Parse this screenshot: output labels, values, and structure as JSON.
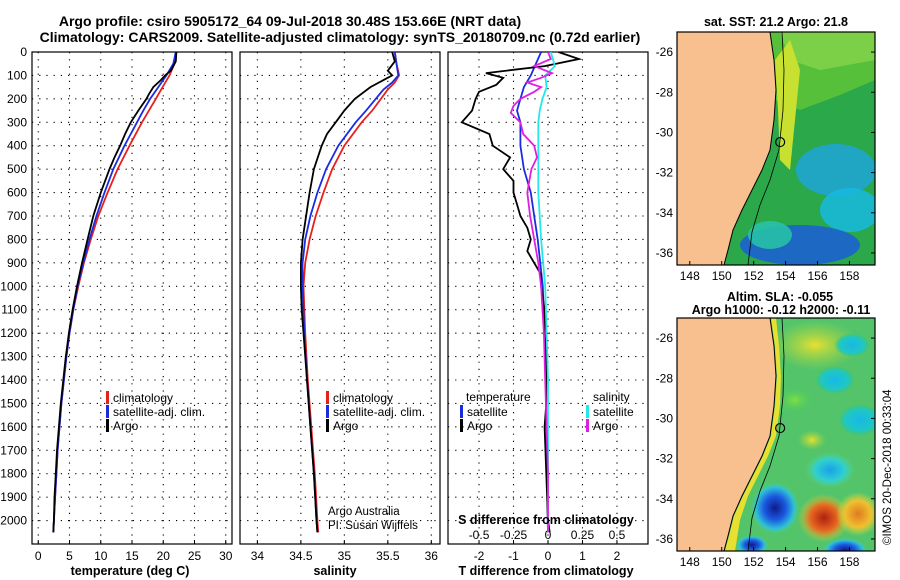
{
  "figure": {
    "title_line1": "Argo profile: csiro 5905172_64 09-Jul-2018 30.48S 153.66E (NRT data)",
    "title_line2": "Climatology: CARS2009. Satellite-adjusted climatology: synTS_20180709.nc (0.72d earlier)",
    "credit_line1": "Argo Australia",
    "credit_line2": "PI: Susan Wijffels",
    "footer_vertical": "©IMOS 20-Dec-2018 00:33:04"
  },
  "colors": {
    "climatology": "#e8201c",
    "satellite": "#1a2ce0",
    "argo": "#000000",
    "sal_satellite": "#22e8e8",
    "sal_argo": "#e020e0"
  },
  "chart_data": [
    {
      "type": "line",
      "id": "temperature",
      "xlabel": "temperature (deg C)",
      "ylabel": "depth",
      "xlim": [
        -1,
        31
      ],
      "ylim": [
        2100,
        0
      ],
      "xticks": [
        "0",
        "5",
        "10",
        "15",
        "20",
        "25",
        "30"
      ],
      "yticks": [
        "0",
        "100",
        "200",
        "300",
        "400",
        "500",
        "600",
        "700",
        "800",
        "900",
        "1000",
        "1100",
        "1200",
        "1300",
        "1400",
        "1500",
        "1600",
        "1700",
        "1800",
        "1900",
        "2000"
      ],
      "legend": [
        "climatology",
        "satellite-adj. clim.",
        "Argo"
      ],
      "series": [
        {
          "name": "climatology",
          "depth": [
            0,
            50,
            100,
            150,
            200,
            250,
            300,
            400,
            500,
            600,
            700,
            800,
            900,
            1000,
            1100,
            1200,
            1300,
            1400,
            1500,
            1600,
            1700,
            1800,
            1900,
            2000,
            2050
          ],
          "values": [
            22.0,
            21.8,
            21.0,
            19.9,
            18.8,
            17.7,
            16.6,
            14.6,
            12.7,
            11.1,
            9.6,
            8.4,
            7.3,
            6.4,
            5.6,
            5.0,
            4.5,
            4.1,
            3.7,
            3.4,
            3.1,
            2.9,
            2.7,
            2.5,
            2.4
          ]
        },
        {
          "name": "satellite-adj. clim.",
          "depth": [
            0,
            50,
            100,
            150,
            200,
            250,
            300,
            400,
            500,
            600,
            700,
            800,
            900,
            1000,
            1100,
            1200,
            1300,
            1400,
            1500,
            1600,
            1700,
            1800,
            1900,
            2000,
            2050
          ],
          "values": [
            22.0,
            21.6,
            20.5,
            19.2,
            17.9,
            16.8,
            15.8,
            13.8,
            12.0,
            10.6,
            9.3,
            8.2,
            7.2,
            6.3,
            5.6,
            5.0,
            4.5,
            4.1,
            3.7,
            3.4,
            3.1,
            2.9,
            2.7,
            2.5,
            2.4
          ]
        },
        {
          "name": "Argo",
          "depth": [
            0,
            40,
            80,
            100,
            120,
            150,
            180,
            200,
            250,
            300,
            350,
            400,
            450,
            500,
            600,
            700,
            800,
            900,
            1000,
            1100,
            1200,
            1300,
            1400,
            1500,
            1600,
            1700,
            1800,
            1900,
            2000,
            2050
          ],
          "values": [
            22.1,
            22.0,
            21.2,
            20.3,
            19.6,
            18.4,
            17.7,
            17.3,
            16.0,
            14.8,
            13.9,
            13.1,
            12.2,
            11.4,
            10.0,
            8.8,
            7.9,
            7.0,
            6.2,
            5.5,
            4.9,
            4.4,
            4.0,
            3.6,
            3.3,
            3.0,
            2.8,
            2.6,
            2.5,
            2.4
          ]
        }
      ]
    },
    {
      "type": "line",
      "id": "salinity",
      "xlabel": "salinity",
      "xlim": [
        33.8,
        36.1
      ],
      "ylim": [
        2100,
        0
      ],
      "xticks": [
        "34",
        "34.5",
        "35",
        "35.5",
        "36"
      ],
      "legend": [
        "climatology",
        "satellite-adj. clim.",
        "Argo"
      ],
      "series": [
        {
          "name": "climatology",
          "depth": [
            0,
            50,
            100,
            130,
            160,
            200,
            250,
            300,
            400,
            500,
            600,
            700,
            800,
            900,
            1000,
            1200,
            1400,
            1600,
            1800,
            2000,
            2050
          ],
          "values": [
            35.58,
            35.6,
            35.63,
            35.58,
            35.5,
            35.42,
            35.32,
            35.2,
            35.0,
            34.86,
            34.76,
            34.67,
            34.6,
            34.55,
            34.53,
            34.55,
            34.58,
            34.62,
            34.66,
            34.69,
            34.7
          ]
        },
        {
          "name": "satellite-adj. clim.",
          "depth": [
            0,
            50,
            100,
            130,
            160,
            200,
            250,
            300,
            400,
            500,
            600,
            700,
            800,
            900,
            1000,
            1200,
            1400,
            1600,
            1800,
            2000,
            2050
          ],
          "values": [
            35.58,
            35.6,
            35.62,
            35.55,
            35.45,
            35.36,
            35.25,
            35.13,
            34.93,
            34.79,
            34.69,
            34.61,
            34.55,
            34.52,
            34.52,
            34.54,
            34.57,
            34.61,
            34.65,
            34.68,
            34.69
          ]
        },
        {
          "name": "Argo",
          "depth": [
            0,
            40,
            80,
            100,
            120,
            150,
            200,
            250,
            300,
            350,
            400,
            500,
            600,
            700,
            800,
            900,
            1000,
            1100,
            1200,
            1400,
            1600,
            1800,
            2000,
            2050
          ],
          "values": [
            35.55,
            35.58,
            35.5,
            35.55,
            35.45,
            35.3,
            35.12,
            35.0,
            34.9,
            34.8,
            34.74,
            34.65,
            34.6,
            34.56,
            34.52,
            34.5,
            34.5,
            34.51,
            34.53,
            34.57,
            34.61,
            34.65,
            34.68,
            34.69
          ]
        }
      ]
    },
    {
      "type": "line",
      "id": "difference",
      "xlabel": "T difference from climatology",
      "xlabel_top": "S difference from climatology",
      "xlim": [
        -2.9,
        2.9
      ],
      "ylim": [
        2100,
        0
      ],
      "xticks": [
        "-2",
        "-1",
        "0",
        "1",
        "2"
      ],
      "xticks_s": [
        "-0.5",
        "-0.25",
        "0",
        "0.25",
        "0.5"
      ],
      "legend_t_title": "temperature",
      "legend_s_title": "salinity",
      "legend": [
        "satellite",
        "Argo",
        "satellite",
        "Argo"
      ],
      "series": [
        {
          "name": "T satellite",
          "depth": [
            0,
            100,
            150,
            200,
            250,
            300,
            400,
            500,
            600,
            700,
            800,
            1000,
            1200,
            1400,
            1600,
            1800,
            2000,
            2050
          ],
          "values": [
            -0.2,
            -0.5,
            -0.7,
            -0.8,
            -0.9,
            -0.8,
            -0.8,
            -0.7,
            -0.5,
            -0.4,
            -0.3,
            -0.15,
            -0.1,
            -0.06,
            -0.04,
            -0.02,
            -0.01,
            0.0
          ]
        },
        {
          "name": "T Argo",
          "depth": [
            0,
            30,
            60,
            90,
            110,
            140,
            170,
            200,
            250,
            300,
            350,
            400,
            450,
            500,
            550,
            600,
            650,
            700,
            750,
            800,
            850,
            900,
            950,
            1000,
            1100,
            1200,
            1300,
            1400,
            1500,
            1600,
            1800,
            2000,
            2050
          ],
          "values": [
            0.3,
            0.9,
            -0.1,
            -1.8,
            -1.3,
            -1.5,
            -2.0,
            -2.1,
            -2.2,
            -2.5,
            -1.7,
            -1.6,
            -1.1,
            -1.3,
            -1.0,
            -1.0,
            -0.9,
            -0.8,
            -0.6,
            -0.5,
            -0.6,
            -0.4,
            -0.2,
            -0.2,
            -0.1,
            -0.1,
            -0.05,
            -0.05,
            -0.05,
            -0.1,
            -0.05,
            0.0,
            0.05
          ]
        },
        {
          "name": "S satellite",
          "depth": [
            0,
            60,
            100,
            150,
            200,
            250,
            300,
            400,
            500,
            600,
            700,
            800,
            1000,
            1200,
            1400,
            1600,
            1800,
            2000,
            2050
          ],
          "values": [
            0.02,
            0.05,
            -0.02,
            -0.01,
            -0.04,
            -0.06,
            -0.07,
            -0.07,
            -0.07,
            -0.07,
            -0.06,
            -0.05,
            -0.02,
            -0.01,
            0.0,
            0.0,
            0.0,
            0.0,
            0.0
          ]
        },
        {
          "name": "S Argo",
          "depth": [
            0,
            30,
            60,
            90,
            110,
            130,
            150,
            170,
            200,
            230,
            260,
            300,
            350,
            400,
            450,
            500,
            600,
            700,
            800,
            900,
            1000,
            1200,
            1400,
            1600,
            1800,
            2000,
            2050
          ],
          "values": [
            0.0,
            0.02,
            -0.1,
            0.03,
            -0.05,
            -0.15,
            -0.05,
            -0.1,
            -0.2,
            -0.25,
            -0.27,
            -0.2,
            -0.18,
            -0.1,
            -0.08,
            -0.12,
            -0.15,
            -0.13,
            -0.1,
            -0.07,
            -0.05,
            -0.03,
            -0.02,
            -0.01,
            0.0,
            0.0,
            0.0
          ]
        }
      ]
    },
    {
      "type": "heatmap",
      "id": "sst_map",
      "title": "sat. SST: 21.2 Argo: 21.8",
      "xlim": [
        147.2,
        159.6
      ],
      "ylim": [
        -36.6,
        -25.0
      ],
      "xticks": [
        "148",
        "150",
        "152",
        "154",
        "156",
        "158"
      ],
      "yticks": [
        "-26",
        "-28",
        "-30",
        "-32",
        "-34",
        "-36"
      ],
      "argo_location": {
        "lon": 153.66,
        "lat": -30.48
      }
    },
    {
      "type": "heatmap",
      "id": "sla_map",
      "title_line1": "Altim. SLA: -0.055",
      "title_line2": "Argo h1000: -0.12 h2000: -0.11",
      "xlim": [
        147.2,
        159.6
      ],
      "ylim": [
        -36.6,
        -25.0
      ],
      "xticks": [
        "148",
        "150",
        "152",
        "154",
        "156",
        "158"
      ],
      "yticks": [
        "-26",
        "-28",
        "-30",
        "-32",
        "-34",
        "-36"
      ],
      "argo_location": {
        "lon": 153.66,
        "lat": -30.48
      }
    }
  ]
}
